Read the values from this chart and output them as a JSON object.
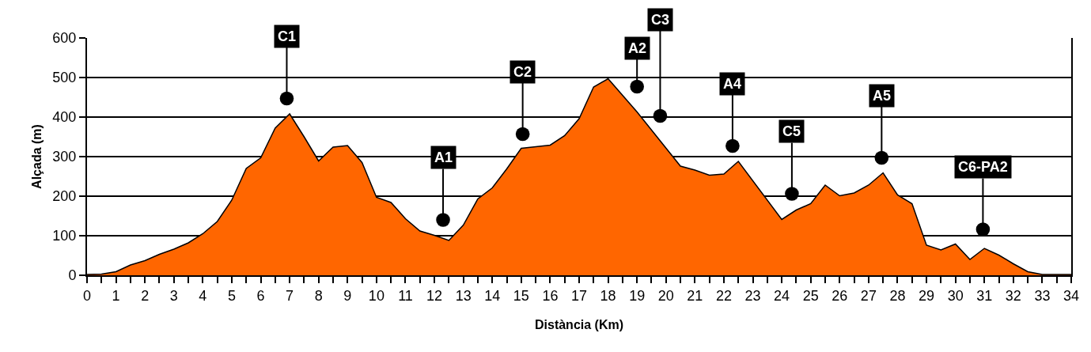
{
  "chart_data": {
    "type": "area",
    "xlabel": "Distància (Km)",
    "ylabel": "Alçada (m)",
    "x": [
      0,
      0.5,
      1,
      1.5,
      2,
      2.5,
      3,
      3.5,
      4,
      4.5,
      5,
      5.5,
      6,
      6.5,
      7,
      7.5,
      8,
      8.5,
      9,
      9.5,
      10,
      10.5,
      11,
      11.5,
      12,
      12.5,
      13,
      13.5,
      14,
      14.5,
      15,
      15.5,
      16,
      16.5,
      17,
      17.5,
      18,
      19,
      20.5,
      21,
      21.5,
      22,
      22.5,
      24,
      24.5,
      25,
      25.5,
      26,
      26.5,
      27,
      27.5,
      28,
      28.5,
      29,
      29.5,
      30,
      30.5,
      31,
      31.5,
      32,
      32.5,
      33,
      34
    ],
    "values": [
      2,
      3,
      9,
      26,
      37,
      53,
      66,
      82,
      105,
      136,
      190,
      270,
      297,
      372,
      408,
      350,
      289,
      324,
      328,
      285,
      197,
      184,
      143,
      112,
      101,
      88,
      127,
      193,
      221,
      269,
      321,
      325,
      329,
      353,
      396,
      476,
      497,
      413,
      276,
      266,
      253,
      256,
      288,
      141,
      165,
      181,
      228,
      201,
      208,
      228,
      259,
      203,
      181,
      76,
      64,
      79,
      40,
      68,
      51,
      29,
      9,
      2,
      2
    ],
    "color": "#ff6600",
    "xlim": [
      0,
      34
    ],
    "ylim": [
      0,
      600
    ],
    "xticks": [
      0,
      1,
      2,
      3,
      4,
      5,
      6,
      7,
      8,
      9,
      10,
      11,
      12,
      13,
      14,
      15,
      16,
      17,
      18,
      19,
      20,
      21,
      22,
      23,
      24,
      25,
      26,
      27,
      28,
      29,
      30,
      31,
      32,
      33,
      34
    ],
    "yticks": [
      0,
      100,
      200,
      300,
      400,
      500,
      600
    ],
    "grid": "y",
    "legend": false,
    "annotations": [
      {
        "text": "C1",
        "x": 6.9,
        "y": 447
      },
      {
        "text": "A1",
        "x": 12.3,
        "y": 140
      },
      {
        "text": "C2",
        "x": 15.05,
        "y": 357
      },
      {
        "text": "A2",
        "x": 19.0,
        "y": 477
      },
      {
        "text": "C3",
        "x": 19.8,
        "y": 403
      },
      {
        "text": "A4",
        "x": 22.3,
        "y": 327
      },
      {
        "text": "C5",
        "x": 24.35,
        "y": 206
      },
      {
        "text": "A5",
        "x": 27.45,
        "y": 297
      },
      {
        "text": "C6-PA2",
        "x": 30.95,
        "y": 116
      }
    ]
  }
}
